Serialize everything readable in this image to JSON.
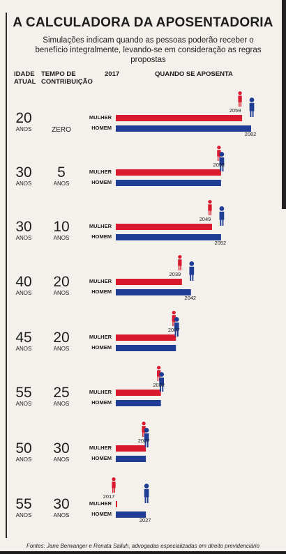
{
  "title": "A CALCULADORA DA APOSENTADORIA",
  "subtitle": "Simulações indicam quando as pessoas poderão receber o benefício integralmente, levando-se em consideração as regras propostas",
  "headers": {
    "age": "IDADE ATUAL",
    "contribution": "TEMPO DE CONTRIBUIÇÃO",
    "start_year": "2017",
    "retire": "QUANDO SE APOSENTA"
  },
  "labels": {
    "woman": "MULHER",
    "man": "HOMEM",
    "years_unit": "ANOS"
  },
  "footer": "Fontes: Jane Berwanger e Renata Salluh, advogadas especializadas em direito previdenciário",
  "colors": {
    "woman": "#d8192e",
    "man": "#1f3d94"
  },
  "chart_data": {
    "type": "bar",
    "axis_start": 2017,
    "categories": [
      {
        "age": "20",
        "contribution": "ZERO"
      },
      {
        "age": "30",
        "contribution": "5"
      },
      {
        "age": "30",
        "contribution": "10"
      },
      {
        "age": "40",
        "contribution": "20"
      },
      {
        "age": "45",
        "contribution": "20"
      },
      {
        "age": "55",
        "contribution": "25"
      },
      {
        "age": "50",
        "contribution": "30"
      },
      {
        "age": "55",
        "contribution": "30"
      }
    ],
    "series": [
      {
        "name": "MULHER",
        "values": [
          2059,
          2052,
          2049,
          2039,
          2037,
          2032,
          2027,
          2017
        ]
      },
      {
        "name": "HOMEM",
        "values": [
          2062,
          2052,
          2052,
          2042,
          2037,
          2032,
          2027,
          2027
        ]
      }
    ]
  }
}
